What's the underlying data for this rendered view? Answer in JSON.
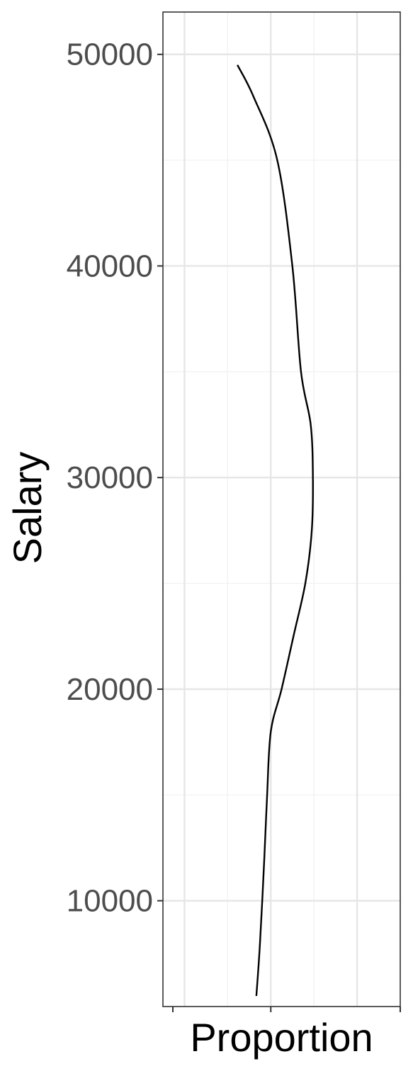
{
  "chart_data": {
    "type": "line",
    "title": "",
    "xlabel": "Proportion",
    "ylabel": "Salary",
    "ylim": [
      5000,
      52000
    ],
    "xlim": [
      -0.1,
      1.0
    ],
    "y_ticks": [
      10000,
      20000,
      30000,
      40000,
      50000
    ],
    "y_tick_labels": [
      "10000",
      "20000",
      "30000",
      "40000",
      "50000"
    ],
    "x_ticks": [
      0.0,
      0.4,
      0.8
    ],
    "x_tick_labels": [],
    "grid": true,
    "legend": "none",
    "colors": {
      "line": "#000000",
      "grid_major": "#e6e6e6",
      "grid_minor": "#f2f2f2",
      "panel_border": "#333333",
      "tick_label": "#4d4d4d"
    },
    "series": [
      {
        "x": [
          0.333,
          0.35,
          0.37,
          0.383,
          0.4,
          0.45,
          0.505,
          0.56,
          0.59,
          0.595,
          0.585,
          0.54,
          0.5,
          0.43,
          0.32,
          0.245
        ],
        "y": [
          5500,
          8000,
          12000,
          15000,
          18000,
          20000,
          22500,
          25000,
          27500,
          30000,
          32500,
          35000,
          40000,
          45000,
          48000,
          49500
        ]
      }
    ]
  }
}
